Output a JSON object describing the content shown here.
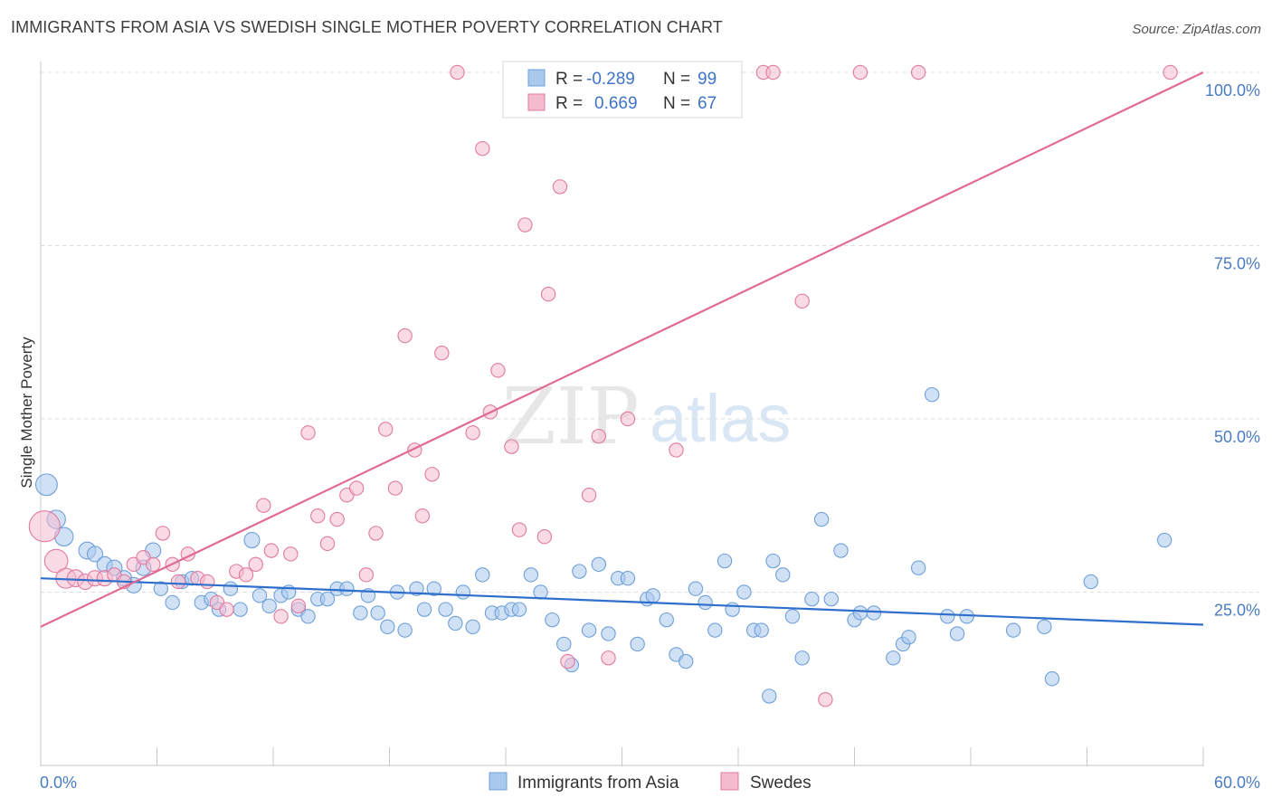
{
  "title": "IMMIGRANTS FROM ASIA VS SWEDISH SINGLE MOTHER POVERTY CORRELATION CHART",
  "source": "Source: ZipAtlas.com",
  "watermark": {
    "zip": "ZIP",
    "atlas": "atlas"
  },
  "colors": {
    "blue": "#6fa0d8",
    "blue_fill": "#a9c8ee",
    "pink": "#e07aa0",
    "pink_fill": "#f5bcd0",
    "blue_line": "#2f6fcc",
    "pink_line": "#e06b94",
    "tick": "#4a7cc2"
  },
  "legend_box": {
    "rows": [
      {
        "r_label": "R =",
        "r_value": "-0.289",
        "n_label": "N =",
        "n_value": "99"
      },
      {
        "r_label": "R =",
        "r_value": "0.669",
        "n_label": "N =",
        "n_value": "67"
      }
    ]
  },
  "bottom_legend": [
    {
      "label": "Immigrants from Asia"
    },
    {
      "label": "Swedes"
    }
  ],
  "chart_data": {
    "type": "scatter",
    "xlabel": "",
    "ylabel": "Single Mother Poverty",
    "xlim": [
      0,
      60
    ],
    "ylim": [
      0,
      102
    ],
    "x_tick_labels": [
      {
        "value": 0,
        "label": "0.0%"
      },
      {
        "value": 60,
        "label": "60.0%"
      }
    ],
    "y_tick_labels": [
      {
        "value": 25,
        "label": "25.0%"
      },
      {
        "value": 50,
        "label": "50.0%"
      },
      {
        "value": 75,
        "label": "75.0%"
      },
      {
        "value": 100,
        "label": "100.0%"
      }
    ],
    "grid": true,
    "series": [
      {
        "name": "Immigrants from Asia",
        "color": "#6fa0d8",
        "trend": {
          "x0": 0,
          "y0": 27.0,
          "x1": 60,
          "y1": 20.3
        },
        "points": [
          [
            0.3,
            40.5,
            14
          ],
          [
            0.8,
            35.5,
            12
          ],
          [
            1.2,
            33.0,
            12
          ],
          [
            2.4,
            31.0,
            11
          ],
          [
            2.8,
            30.5,
            10
          ],
          [
            3.3,
            29.0,
            10
          ],
          [
            3.8,
            28.5,
            10
          ],
          [
            4.3,
            27.0,
            10
          ],
          [
            4.8,
            26.0,
            10
          ],
          [
            5.3,
            28.5,
            10
          ],
          [
            5.8,
            31.0,
            10
          ],
          [
            6.2,
            25.5,
            9
          ],
          [
            6.8,
            23.5,
            9
          ],
          [
            7.3,
            26.5,
            9
          ],
          [
            7.8,
            27.0,
            9
          ],
          [
            8.3,
            23.5,
            9
          ],
          [
            8.8,
            24.0,
            9
          ],
          [
            9.2,
            22.5,
            9
          ],
          [
            9.8,
            25.5,
            9
          ],
          [
            10.3,
            22.5,
            9
          ],
          [
            10.9,
            32.5,
            10
          ],
          [
            11.3,
            24.5,
            9
          ],
          [
            11.8,
            23.0,
            9
          ],
          [
            12.4,
            24.5,
            9
          ],
          [
            12.8,
            25.0,
            9
          ],
          [
            13.3,
            22.5,
            9
          ],
          [
            13.8,
            21.5,
            9
          ],
          [
            14.3,
            24.0,
            9
          ],
          [
            14.8,
            24.0,
            9
          ],
          [
            15.3,
            25.5,
            9
          ],
          [
            15.8,
            25.5,
            9
          ],
          [
            16.5,
            22.0,
            9
          ],
          [
            16.9,
            24.5,
            9
          ],
          [
            17.4,
            22.0,
            9
          ],
          [
            17.9,
            20.0,
            9
          ],
          [
            18.4,
            25.0,
            9
          ],
          [
            18.8,
            19.5,
            9
          ],
          [
            19.4,
            25.5,
            9
          ],
          [
            19.8,
            22.5,
            9
          ],
          [
            20.3,
            25.5,
            9
          ],
          [
            20.9,
            22.5,
            9
          ],
          [
            21.4,
            20.5,
            9
          ],
          [
            21.8,
            25.0,
            9
          ],
          [
            22.3,
            20.0,
            9
          ],
          [
            22.8,
            27.5,
            9
          ],
          [
            23.3,
            22.0,
            9
          ],
          [
            23.8,
            22.0,
            9
          ],
          [
            24.3,
            22.5,
            9
          ],
          [
            24.7,
            22.5,
            9
          ],
          [
            25.3,
            27.5,
            9
          ],
          [
            25.8,
            25.0,
            9
          ],
          [
            26.4,
            21.0,
            9
          ],
          [
            27.0,
            17.5,
            9
          ],
          [
            27.4,
            14.5,
            9
          ],
          [
            27.8,
            28.0,
            9
          ],
          [
            28.3,
            19.5,
            9
          ],
          [
            28.8,
            29.0,
            9
          ],
          [
            29.3,
            19.0,
            9
          ],
          [
            29.8,
            27.0,
            9
          ],
          [
            30.3,
            27.0,
            9
          ],
          [
            30.8,
            17.5,
            9
          ],
          [
            31.3,
            24.0,
            9
          ],
          [
            31.6,
            24.5,
            9
          ],
          [
            32.3,
            21.0,
            9
          ],
          [
            32.8,
            16.0,
            9
          ],
          [
            33.3,
            15.0,
            9
          ],
          [
            33.8,
            25.5,
            9
          ],
          [
            34.3,
            23.5,
            9
          ],
          [
            34.8,
            19.5,
            9
          ],
          [
            35.3,
            29.5,
            9
          ],
          [
            35.7,
            22.5,
            9
          ],
          [
            36.3,
            25.0,
            9
          ],
          [
            36.8,
            19.5,
            9
          ],
          [
            37.2,
            19.5,
            9
          ],
          [
            37.6,
            10.0,
            9
          ],
          [
            37.8,
            29.5,
            9
          ],
          [
            38.3,
            27.5,
            9
          ],
          [
            38.8,
            21.5,
            9
          ],
          [
            39.3,
            15.5,
            9
          ],
          [
            39.8,
            24.0,
            9
          ],
          [
            40.3,
            35.5,
            9
          ],
          [
            40.8,
            24.0,
            9
          ],
          [
            41.3,
            31.0,
            9
          ],
          [
            42.0,
            21.0,
            9
          ],
          [
            42.3,
            22.0,
            9
          ],
          [
            43.0,
            22.0,
            9
          ],
          [
            44.0,
            15.5,
            9
          ],
          [
            44.5,
            17.5,
            9
          ],
          [
            44.8,
            18.5,
            9
          ],
          [
            45.3,
            28.5,
            9
          ],
          [
            46.0,
            53.5,
            9
          ],
          [
            46.8,
            21.5,
            9
          ],
          [
            47.3,
            19.0,
            9
          ],
          [
            47.8,
            21.5,
            9
          ],
          [
            50.2,
            19.5,
            9
          ],
          [
            51.8,
            20.0,
            9
          ],
          [
            52.2,
            12.5,
            9
          ],
          [
            54.2,
            26.5,
            9
          ],
          [
            58.0,
            32.5,
            9
          ]
        ]
      },
      {
        "name": "Swedes",
        "color": "#e07aa0",
        "trend": {
          "x0": 0,
          "y0": 20.0,
          "x1": 60,
          "y1": 100.0
        },
        "points": [
          [
            0.2,
            34.5,
            20
          ],
          [
            0.8,
            29.5,
            15
          ],
          [
            1.3,
            27.0,
            13
          ],
          [
            1.8,
            27.0,
            11
          ],
          [
            2.3,
            26.5,
            10
          ],
          [
            2.8,
            27.0,
            10
          ],
          [
            3.3,
            27.0,
            10
          ],
          [
            3.8,
            27.5,
            9
          ],
          [
            4.3,
            26.5,
            9
          ],
          [
            4.8,
            29.0,
            9
          ],
          [
            5.3,
            30.0,
            9
          ],
          [
            5.8,
            29.0,
            9
          ],
          [
            6.3,
            33.5,
            9
          ],
          [
            6.8,
            29.0,
            9
          ],
          [
            7.1,
            26.5,
            9
          ],
          [
            7.6,
            30.5,
            9
          ],
          [
            8.1,
            27.0,
            9
          ],
          [
            8.6,
            26.5,
            9
          ],
          [
            9.1,
            23.5,
            9
          ],
          [
            9.6,
            22.5,
            9
          ],
          [
            10.1,
            28.0,
            9
          ],
          [
            10.6,
            27.5,
            9
          ],
          [
            11.1,
            29.0,
            9
          ],
          [
            11.5,
            37.5,
            9
          ],
          [
            11.9,
            31.0,
            9
          ],
          [
            12.4,
            21.5,
            9
          ],
          [
            12.9,
            30.5,
            9
          ],
          [
            13.3,
            23.0,
            9
          ],
          [
            13.8,
            48.0,
            9
          ],
          [
            14.3,
            36.0,
            9
          ],
          [
            14.8,
            32.0,
            9
          ],
          [
            15.3,
            35.5,
            9
          ],
          [
            15.8,
            39.0,
            9
          ],
          [
            16.3,
            40.0,
            9
          ],
          [
            16.8,
            27.5,
            9
          ],
          [
            17.3,
            33.5,
            9
          ],
          [
            17.8,
            48.5,
            9
          ],
          [
            18.3,
            40.0,
            9
          ],
          [
            18.8,
            62.0,
            9
          ],
          [
            19.3,
            45.5,
            9
          ],
          [
            19.7,
            36.0,
            9
          ],
          [
            20.2,
            42.0,
            9
          ],
          [
            20.7,
            59.5,
            9
          ],
          [
            21.5,
            100.0,
            9
          ],
          [
            22.3,
            48.0,
            9
          ],
          [
            22.8,
            89.0,
            9
          ],
          [
            23.2,
            51.0,
            9
          ],
          [
            23.6,
            57.0,
            9
          ],
          [
            24.3,
            46.0,
            9
          ],
          [
            24.7,
            34.0,
            9
          ],
          [
            25.0,
            78.0,
            9
          ],
          [
            26.0,
            33.0,
            9
          ],
          [
            26.2,
            68.0,
            9
          ],
          [
            26.8,
            83.5,
            9
          ],
          [
            27.2,
            15.0,
            9
          ],
          [
            28.3,
            39.0,
            9
          ],
          [
            28.8,
            47.5,
            9
          ],
          [
            29.3,
            15.5,
            9
          ],
          [
            30.3,
            50.0,
            9
          ],
          [
            32.3,
            100.0,
            9
          ],
          [
            32.8,
            45.5,
            9
          ],
          [
            37.3,
            100.0,
            9
          ],
          [
            37.8,
            100.0,
            9
          ],
          [
            39.3,
            67.0,
            9
          ],
          [
            40.5,
            9.5,
            9
          ],
          [
            42.3,
            100.0,
            9
          ],
          [
            45.3,
            100.0,
            9
          ],
          [
            58.3,
            100.0,
            9
          ]
        ]
      }
    ]
  }
}
